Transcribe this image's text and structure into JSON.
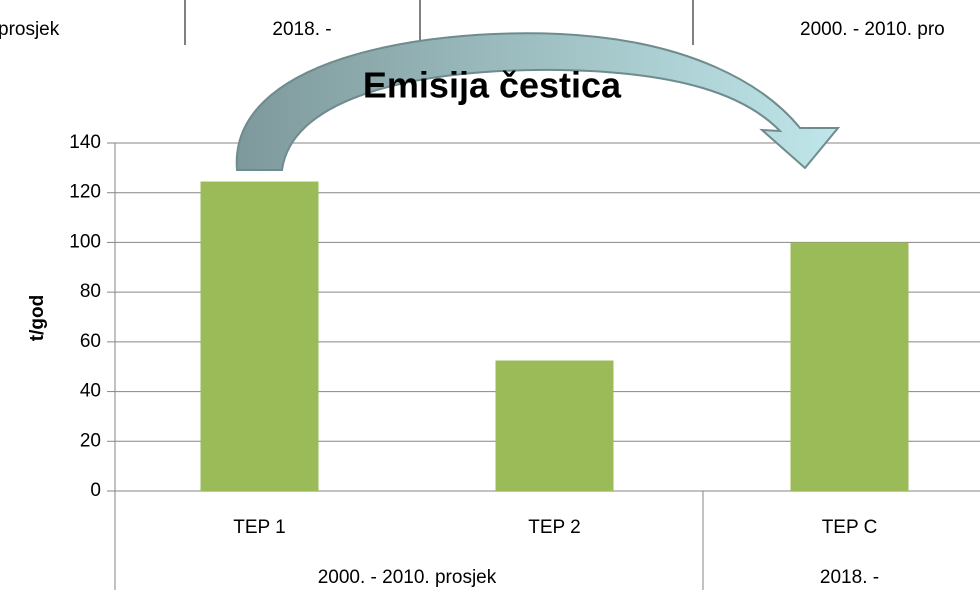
{
  "chart_data": {
    "type": "bar",
    "title": "Emisija čestica",
    "y_label": "t/god",
    "categories": [
      "TEP 1",
      "TEP 2",
      "TEP C"
    ],
    "values": [
      124.5,
      52.5,
      100
    ],
    "color": "#9bbb59",
    "groups": [
      "2000. - 2010. prosjek",
      "2018. -"
    ],
    "ylim": [
      0,
      140
    ],
    "yticks": [
      0,
      20,
      40,
      60,
      80,
      100,
      120,
      140
    ],
    "grid": true
  },
  "top_strip": [
    "prosjek",
    "2018. -",
    "2000. - 2010. pro"
  ]
}
